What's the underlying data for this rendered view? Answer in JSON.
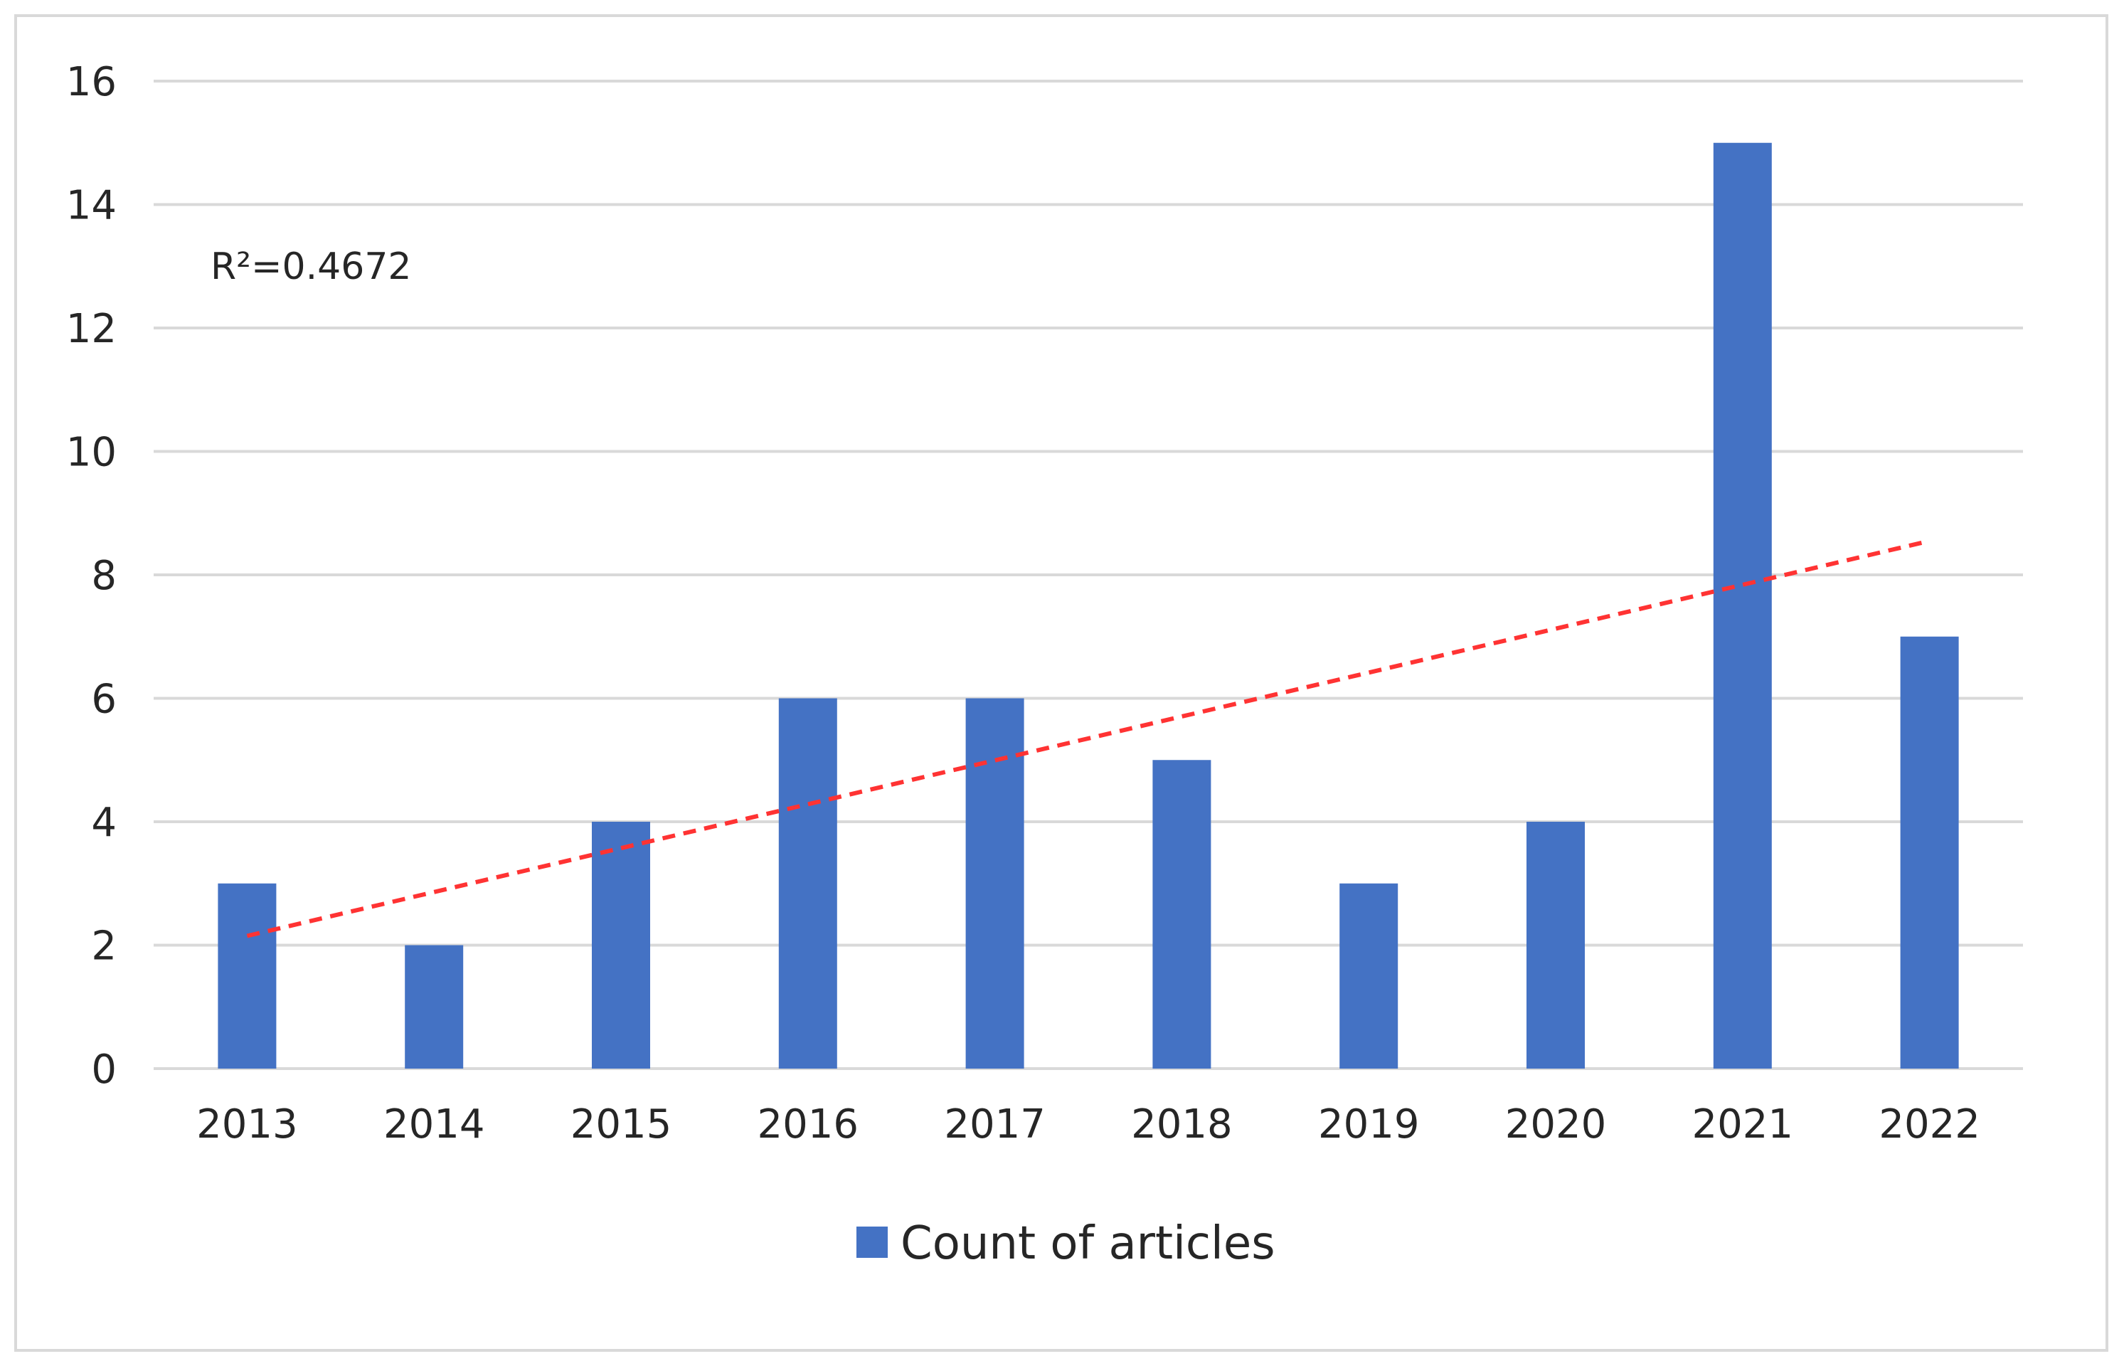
{
  "chart_data": {
    "type": "bar",
    "categories": [
      "2013",
      "2014",
      "2015",
      "2016",
      "2017",
      "2018",
      "2019",
      "2020",
      "2021",
      "2022"
    ],
    "series": [
      {
        "name": "Count of articles",
        "values": [
          3,
          2,
          4,
          6,
          6,
          5,
          3,
          4,
          15,
          7
        ]
      }
    ],
    "ylim": [
      0,
      16
    ],
    "yticks": [
      0,
      2,
      4,
      6,
      8,
      10,
      12,
      14,
      16
    ],
    "grid": true,
    "legend": {
      "position": "bottom",
      "entries": [
        "Count of articles"
      ]
    },
    "trendline": {
      "type": "linear",
      "start": {
        "x": "2013",
        "y": 2.15
      },
      "end": {
        "x": "2022",
        "y": 8.55
      },
      "annotation": "R²=0.4672"
    },
    "colors": {
      "bar": "#4472c4",
      "trendline": "#ff3333",
      "grid": "#d9d9d9",
      "text": "#262626"
    }
  }
}
